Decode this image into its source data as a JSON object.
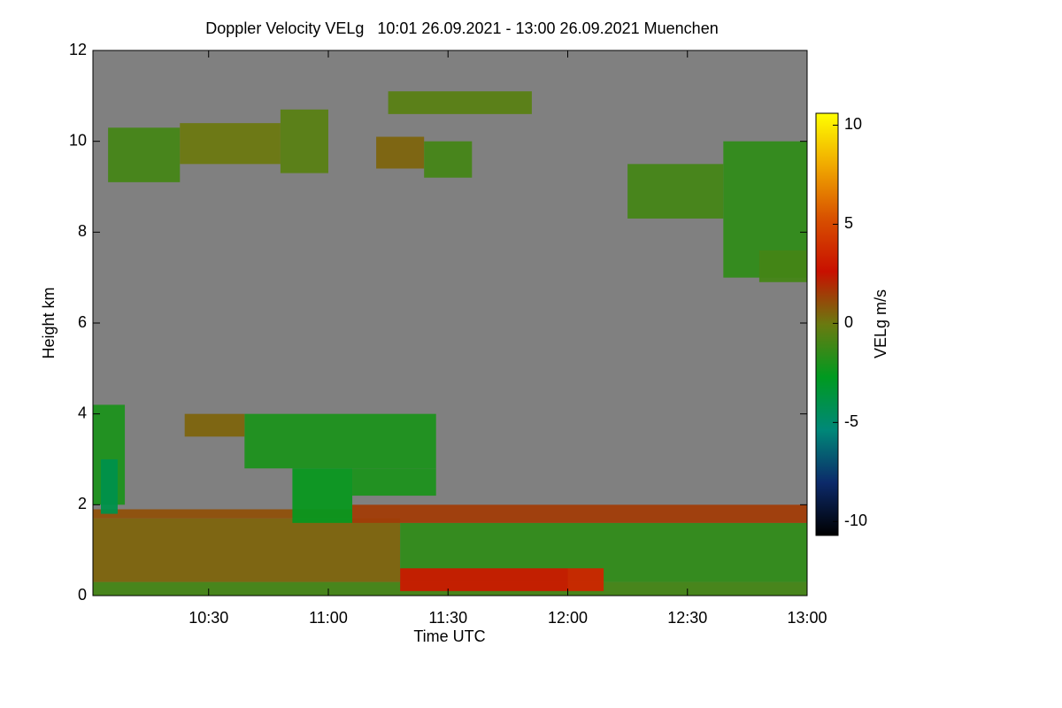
{
  "chart_data": {
    "type": "heatmap",
    "title": "Doppler Velocity VELg   10:01 26.09.2021 - 13:00 26.09.2021 Muenchen",
    "x_label": "Time UTC",
    "y_label": "Height km",
    "colorbar_label": "VELg m/s",
    "background": "#808080",
    "xlim": [
      10.0167,
      13.0
    ],
    "xticks": [
      {
        "value": 10.5,
        "label": "10:30"
      },
      {
        "value": 11.0,
        "label": "11:00"
      },
      {
        "value": 11.5,
        "label": "11:30"
      },
      {
        "value": 12.0,
        "label": "12:00"
      },
      {
        "value": 12.5,
        "label": "12:30"
      },
      {
        "value": 13.0,
        "label": "13:00"
      }
    ],
    "ylim": [
      0,
      12
    ],
    "yticks": [
      0,
      2,
      4,
      6,
      8,
      10,
      12
    ],
    "clim": [
      -10.7,
      10.6
    ],
    "cticks": [
      -10,
      -5,
      0,
      5,
      10
    ],
    "colormap": [
      "#000000",
      "#0c2a6a",
      "#008878",
      "#009a20",
      "#6a7a10",
      "#c81000",
      "#d85000",
      "#f0a800",
      "#ffff00"
    ],
    "cells": [
      {
        "x": [
          10.0167,
          13.0
        ],
        "y": [
          0,
          0.3
        ],
        "value": -1
      },
      {
        "x": [
          10.0167,
          11.3
        ],
        "y": [
          0.3,
          1.7
        ],
        "value": 0.5
      },
      {
        "x": [
          11.3,
          13.0
        ],
        "y": [
          0.3,
          1.6
        ],
        "value": -1.5
      },
      {
        "x": [
          11.3,
          12.0
        ],
        "y": [
          0.1,
          0.6
        ],
        "value": 3
      },
      {
        "x": [
          12.0,
          12.15
        ],
        "y": [
          0.1,
          0.6
        ],
        "value": 3.5
      },
      {
        "x": [
          11.1,
          13.0
        ],
        "y": [
          1.6,
          2.0
        ],
        "value": 1.5
      },
      {
        "x": [
          10.0167,
          11.1
        ],
        "y": [
          1.7,
          1.9
        ],
        "value": 1
      },
      {
        "x": [
          10.0167,
          10.15
        ],
        "y": [
          2.0,
          4.2
        ],
        "value": -2
      },
      {
        "x": [
          10.05,
          10.12
        ],
        "y": [
          1.8,
          3.0
        ],
        "value": -4
      },
      {
        "x": [
          10.65,
          11.45
        ],
        "y": [
          2.8,
          4.0
        ],
        "value": -2
      },
      {
        "x": [
          10.4,
          10.65
        ],
        "y": [
          3.5,
          4.0
        ],
        "value": 0.5
      },
      {
        "x": [
          10.85,
          11.1
        ],
        "y": [
          1.6,
          2.8
        ],
        "value": -2.5
      },
      {
        "x": [
          11.1,
          11.45
        ],
        "y": [
          2.2,
          2.8
        ],
        "value": -2
      },
      {
        "x": [
          10.08,
          10.38
        ],
        "y": [
          9.1,
          10.3
        ],
        "value": -1
      },
      {
        "x": [
          10.38,
          10.8
        ],
        "y": [
          9.5,
          10.4
        ],
        "value": 0
      },
      {
        "x": [
          10.8,
          11.0
        ],
        "y": [
          9.3,
          10.7
        ],
        "value": -0.5
      },
      {
        "x": [
          11.2,
          11.4
        ],
        "y": [
          9.4,
          10.1
        ],
        "value": 0.5
      },
      {
        "x": [
          11.25,
          11.85
        ],
        "y": [
          10.6,
          11.1
        ],
        "value": -0.5
      },
      {
        "x": [
          11.4,
          11.6
        ],
        "y": [
          9.2,
          10.0
        ],
        "value": -1
      },
      {
        "x": [
          12.25,
          12.65
        ],
        "y": [
          8.3,
          9.5
        ],
        "value": -1
      },
      {
        "x": [
          12.65,
          13.0
        ],
        "y": [
          7.0,
          10.0
        ],
        "value": -1.5
      },
      {
        "x": [
          12.8,
          13.0
        ],
        "y": [
          6.9,
          7.6
        ],
        "value": -1
      }
    ]
  }
}
